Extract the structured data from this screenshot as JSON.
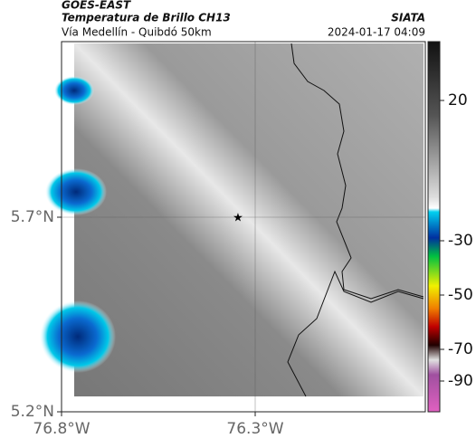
{
  "header": {
    "title": "GOES-EAST",
    "product": "Temperatura de Brillo CH13",
    "route": "Vía Medellín - Quibdó 50km",
    "org": "SIATA",
    "timestamp": "2024-01-17 04:09"
  },
  "map": {
    "xticks": [
      {
        "value": -76.8,
        "label": "76.8°W"
      },
      {
        "value": -76.3,
        "label": "76.3°W"
      }
    ],
    "yticks": [
      {
        "value": 5.7,
        "label": "5.7°N"
      },
      {
        "value": 5.2,
        "label": "5.2°N"
      }
    ],
    "colorbar_ticks": [
      20,
      -30,
      -50,
      -70,
      -90
    ]
  }
}
